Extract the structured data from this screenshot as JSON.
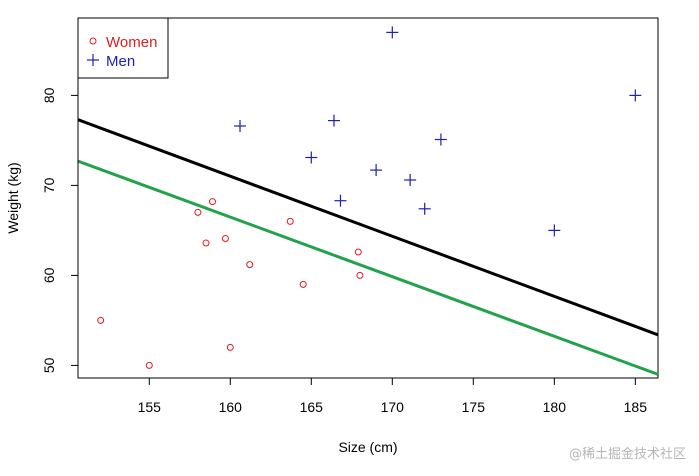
{
  "chart_data": {
    "type": "scatter",
    "title": "",
    "xlabel": "Size (cm)",
    "ylabel": "Weight (kg)",
    "xlim": [
      150.6,
      186.4
    ],
    "ylim": [
      48.6,
      88.6
    ],
    "xticks": [
      155,
      160,
      165,
      170,
      175,
      180,
      185
    ],
    "yticks": [
      50,
      60,
      70,
      80
    ],
    "grid": false,
    "legend_position": "top-left",
    "series": [
      {
        "name": "Women",
        "color": "#e31a1c",
        "marker": "open-circle",
        "points": [
          {
            "x": 152,
            "y": 55
          },
          {
            "x": 155,
            "y": 50
          },
          {
            "x": 158,
            "y": 67
          },
          {
            "x": 158.5,
            "y": 63.6
          },
          {
            "x": 158.9,
            "y": 68.2
          },
          {
            "x": 159.7,
            "y": 64.1
          },
          {
            "x": 160,
            "y": 52
          },
          {
            "x": 161.2,
            "y": 61.2
          },
          {
            "x": 163.7,
            "y": 66
          },
          {
            "x": 164.5,
            "y": 59
          },
          {
            "x": 167.9,
            "y": 62.6
          },
          {
            "x": 168,
            "y": 60
          }
        ]
      },
      {
        "name": "Men",
        "color": "#1f1fb4",
        "marker": "plus",
        "points": [
          {
            "x": 160.6,
            "y": 76.6
          },
          {
            "x": 165,
            "y": 73.1
          },
          {
            "x": 166.4,
            "y": 77.2
          },
          {
            "x": 166.8,
            "y": 68.3
          },
          {
            "x": 169,
            "y": 71.7
          },
          {
            "x": 170,
            "y": 87
          },
          {
            "x": 171.1,
            "y": 70.6
          },
          {
            "x": 172,
            "y": 67.4
          },
          {
            "x": 173,
            "y": 75.1
          },
          {
            "x": 180,
            "y": 65
          },
          {
            "x": 185,
            "y": 80
          }
        ]
      }
    ],
    "lines": [
      {
        "color": "#000000",
        "from": {
          "x": 150.6,
          "y": 77.3
        },
        "to": {
          "x": 186.4,
          "y": 53.4
        }
      },
      {
        "color": "#22a24a",
        "from": {
          "x": 150.6,
          "y": 72.7
        },
        "to": {
          "x": 186.4,
          "y": 49.0
        }
      }
    ]
  },
  "watermark": "@稀土掘金技术社区"
}
